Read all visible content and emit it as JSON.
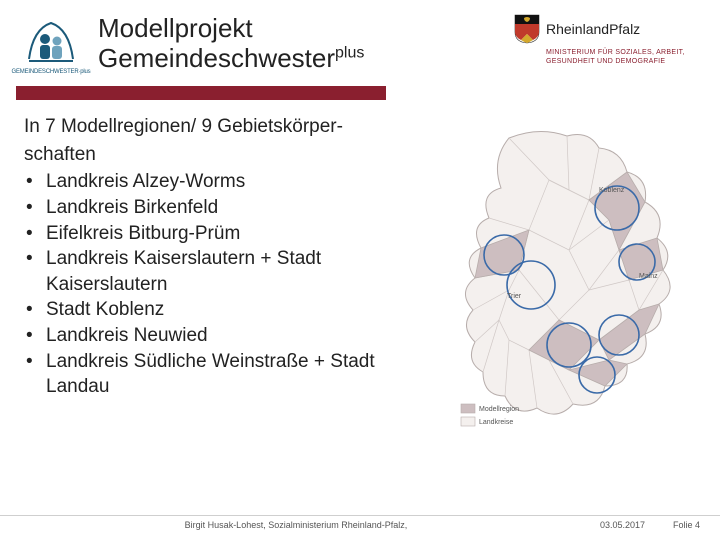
{
  "colors": {
    "brand_red": "#8a1f2f",
    "logo_blue": "#1b5a7a",
    "logo_blue_light": "#6fa3bd",
    "text": "#222222",
    "footer_text": "#555555",
    "footer_rule": "#cfcfcf",
    "map_fill": "#f4f0ee",
    "map_stroke": "#b7adab",
    "map_highlight": "#cdbec0",
    "map_circle": "#3a6aa8",
    "shield_red": "#c0392b",
    "shield_gold": "#d4a82c"
  },
  "header": {
    "title_line1": "Modellprojekt",
    "title_base": "Gemeindeschwester",
    "title_super": "plus",
    "logo_left_caption": "GEMEINDESCHWESTER·plus",
    "rlp_text_light": "Rheinland",
    "rlp_text_bold": "Pfalz",
    "ministry": "MINISTERIUM FÜR SOZIALES, ARBEIT, GESUNDHEIT UND DEMOGRAFIE"
  },
  "content": {
    "intro_line1": "In 7 Modellregionen/  9 Gebietskörper-",
    "intro_line2": "schaften",
    "regions": [
      "Landkreis Alzey-Worms",
      "Landkreis Birkenfeld",
      "Eifelkreis Bitburg-Prüm",
      "Landkreis Kaiserslautern + Stadt Kaiserslautern",
      "Stadt Koblenz",
      "Landkreis Neuwied",
      "Landkreis Südliche Weinstraße + Stadt Landau"
    ]
  },
  "map": {
    "labels": [
      "Trier",
      "Mainz",
      "Koblenz"
    ],
    "legend": [
      "Modellregion",
      "Landkreise"
    ]
  },
  "footer": {
    "author": "Birgit Husak-Lohest, Sozialministerium Rheinland-Pfalz,",
    "date": "03.05.2017",
    "page": "Folie 4"
  }
}
